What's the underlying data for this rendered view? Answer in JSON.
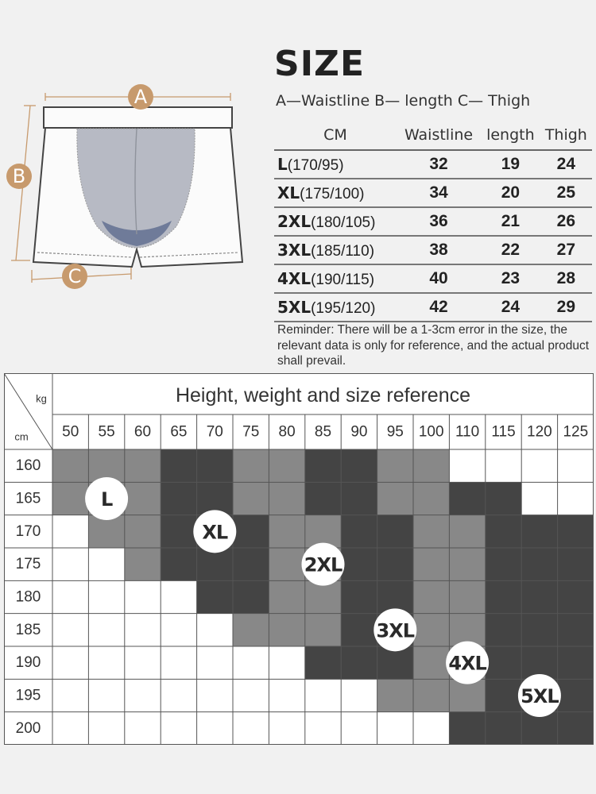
{
  "size_title": "SIZE",
  "legend_line": "A—Waistline B— length  C— Thigh",
  "diagram": {
    "a": "A",
    "b": "B",
    "c": "C"
  },
  "size_table": {
    "unit": "CM",
    "headers": [
      "Waistline",
      "length",
      "Thigh"
    ],
    "rows": [
      {
        "size": "L",
        "hw": "(170/95)",
        "waist": "32",
        "length": "19",
        "thigh": "24"
      },
      {
        "size": "XL",
        "hw": "(175/100)",
        "waist": "34",
        "length": "20",
        "thigh": "25"
      },
      {
        "size": "2XL",
        "hw": "(180/105)",
        "waist": "36",
        "length": "21",
        "thigh": "26"
      },
      {
        "size": "3XL",
        "hw": "(185/110)",
        "waist": "38",
        "length": "22",
        "thigh": "27"
      },
      {
        "size": "4XL",
        "hw": "(190/115)",
        "waist": "40",
        "length": "23",
        "thigh": "28"
      },
      {
        "size": "5XL",
        "hw": "(195/120)",
        "waist": "42",
        "length": "24",
        "thigh": "29"
      }
    ]
  },
  "reminder": "Reminder: There will be a 1-3cm error in the size, the relevant data is only for reference, and the actual product shall prevail.",
  "colors": {
    "light": "#888888",
    "dark": "#444444",
    "empty": "#ffffff",
    "accent": "#c79a6d"
  },
  "chart_data": {
    "type": "heatmap",
    "title": "Height, weight and size reference",
    "xlabel": "kg",
    "ylabel": "cm",
    "x": [
      "50",
      "55",
      "60",
      "65",
      "70",
      "75",
      "80",
      "85",
      "90",
      "95",
      "100",
      "110",
      "115",
      "120",
      "125"
    ],
    "y": [
      "160",
      "165",
      "170",
      "175",
      "180",
      "185",
      "190",
      "195",
      "200"
    ],
    "sizes": [
      "L",
      "XL",
      "2XL",
      "3XL",
      "4XL",
      "5XL"
    ],
    "cells": [
      [
        1,
        1,
        1,
        2,
        2,
        3,
        3,
        4,
        4,
        5,
        5,
        0,
        0,
        0,
        0
      ],
      [
        1,
        1,
        1,
        2,
        2,
        3,
        3,
        4,
        4,
        5,
        5,
        6,
        6,
        0,
        0
      ],
      [
        0,
        1,
        1,
        2,
        2,
        2,
        3,
        3,
        4,
        4,
        5,
        5,
        6,
        6,
        6
      ],
      [
        0,
        0,
        1,
        2,
        2,
        2,
        3,
        3,
        4,
        4,
        5,
        5,
        6,
        6,
        6
      ],
      [
        0,
        0,
        0,
        0,
        2,
        2,
        3,
        3,
        4,
        4,
        5,
        5,
        6,
        6,
        6
      ],
      [
        0,
        0,
        0,
        0,
        0,
        3,
        3,
        3,
        4,
        4,
        5,
        5,
        6,
        6,
        6
      ],
      [
        0,
        0,
        0,
        0,
        0,
        0,
        0,
        4,
        4,
        4,
        5,
        5,
        6,
        6,
        6
      ],
      [
        0,
        0,
        0,
        0,
        0,
        0,
        0,
        0,
        0,
        5,
        5,
        5,
        6,
        6,
        6
      ],
      [
        0,
        0,
        0,
        0,
        0,
        0,
        0,
        0,
        0,
        0,
        0,
        6,
        6,
        6,
        6
      ]
    ],
    "badges": [
      {
        "label": "L",
        "x": "55",
        "y": "165"
      },
      {
        "label": "XL",
        "x": "70",
        "y": "170"
      },
      {
        "label": "2XL",
        "x": "85",
        "y": "175"
      },
      {
        "label": "3XL",
        "x": "95",
        "y": "185"
      },
      {
        "label": "4XL",
        "x": "110",
        "y": "190"
      },
      {
        "label": "5XL",
        "x": "120",
        "y": "195"
      }
    ]
  }
}
